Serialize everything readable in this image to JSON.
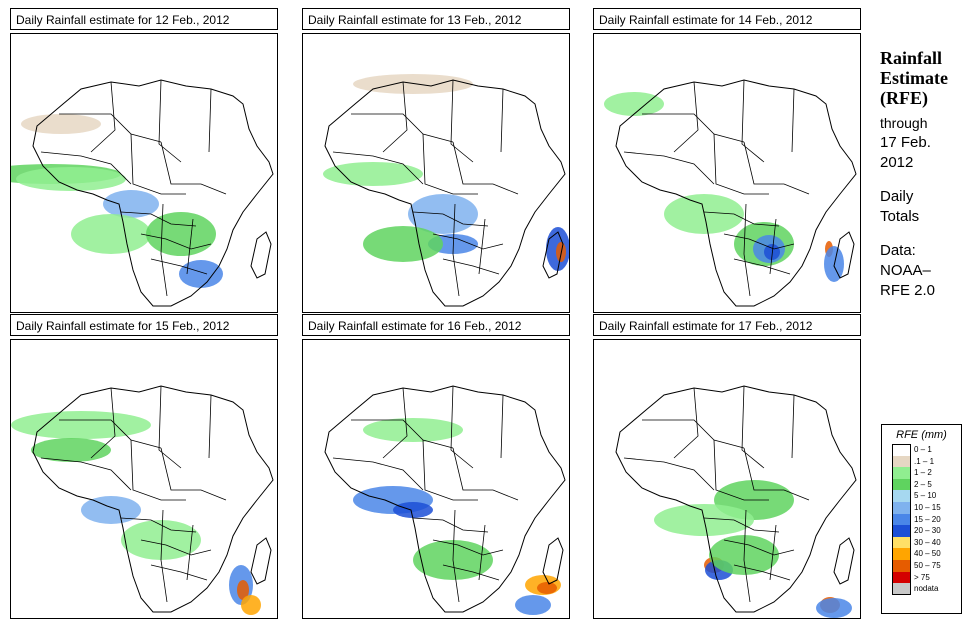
{
  "panels": [
    {
      "title": "Daily Rainfall estimate for  12 Feb., 2012"
    },
    {
      "title": "Daily Rainfall estimate for  13 Feb., 2012"
    },
    {
      "title": "Daily Rainfall estimate for  14 Feb., 2012"
    },
    {
      "title": "Daily Rainfall estimate for  15 Feb., 2012"
    },
    {
      "title": "Daily Rainfall estimate for  16 Feb., 2012"
    },
    {
      "title": "Daily Rainfall estimate for  17 Feb., 2012"
    }
  ],
  "side": {
    "title_line1": "Rainfall",
    "title_line2": "Estimate",
    "title_line3": "(RFE)",
    "through": "through",
    "date_line1": "17 Feb.",
    "date_line2": "2012",
    "daily_line1": "Daily",
    "daily_line2": "Totals",
    "data_label": "Data:",
    "source_line1": "NOAA–",
    "source_line2": "RFE 2.0"
  },
  "legend": {
    "title": "RFE (mm)",
    "items": [
      {
        "label": "0 – 1",
        "color": "#ffffff"
      },
      {
        "label": ".1 – 1",
        "color": "#e6d7c3"
      },
      {
        "label": "1 – 2",
        "color": "#90ee90"
      },
      {
        "label": "2 – 5",
        "color": "#5fd35f"
      },
      {
        "label": "5 – 10",
        "color": "#a6d8f0"
      },
      {
        "label": "10 – 15",
        "color": "#7fb2ee"
      },
      {
        "label": "15 – 20",
        "color": "#4a86e8"
      },
      {
        "label": "20 – 30",
        "color": "#1c4fd6"
      },
      {
        "label": "30 – 40",
        "color": "#ffe066"
      },
      {
        "label": "40 – 50",
        "color": "#ffa500"
      },
      {
        "label": "50 – 75",
        "color": "#e65c00"
      },
      {
        "label": "> 75",
        "color": "#d40000"
      },
      {
        "label": "nodata",
        "color": "#c8c8c8"
      }
    ]
  },
  "colors": {
    "border": "#000000",
    "land": "#ffffff"
  }
}
